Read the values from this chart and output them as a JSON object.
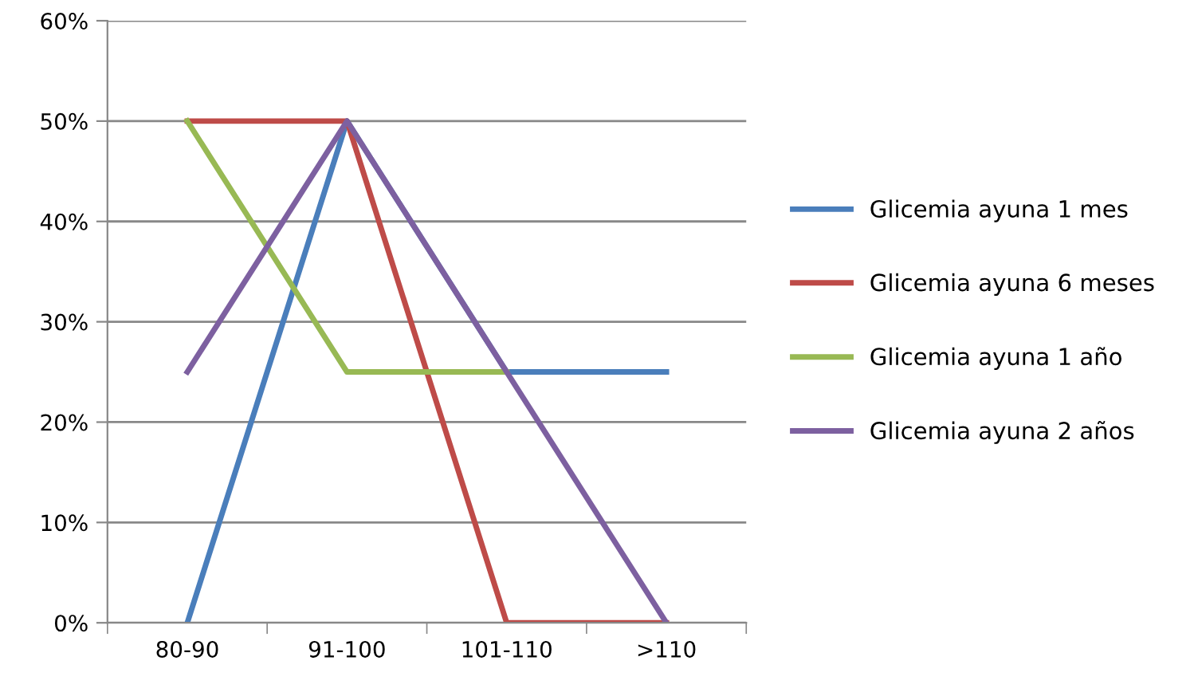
{
  "chart_data": {
    "type": "line",
    "categories": [
      "80-90",
      "91-100",
      "101-110",
      ">110"
    ],
    "series": [
      {
        "name": "Glicemia ayuna 1 mes",
        "color": "#4a7ebb",
        "values": [
          0,
          50,
          25,
          25
        ]
      },
      {
        "name": "Glicemia ayuna 6 meses",
        "color": "#be4b48",
        "values": [
          50,
          50,
          0,
          0
        ]
      },
      {
        "name": "Glicemia ayuna 1 año",
        "color": "#98b954",
        "values": [
          50,
          25,
          25,
          null
        ]
      },
      {
        "name": "Glicemia ayuna 2 años",
        "color": "#7d60a0",
        "values": [
          25,
          50,
          25,
          0
        ]
      }
    ],
    "ylim": [
      0,
      60
    ],
    "yticks": [
      {
        "value": 0,
        "label": "0%"
      },
      {
        "value": 10,
        "label": "10%"
      },
      {
        "value": 20,
        "label": "20%"
      },
      {
        "value": 30,
        "label": "30%"
      },
      {
        "value": 40,
        "label": "40%"
      },
      {
        "value": 50,
        "label": "50%"
      },
      {
        "value": 60,
        "label": "60%"
      }
    ],
    "grid": "y",
    "legend": "right",
    "marker": "none",
    "line_style": "solid"
  }
}
